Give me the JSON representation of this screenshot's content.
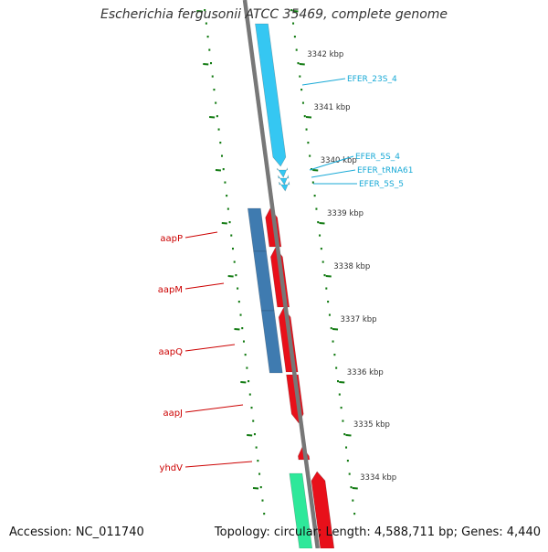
{
  "map": {
    "title": "Escherichia fergusonii ATCC 35469, complete genome",
    "accession": "Accession: NC_011740",
    "topology": "Topology: circular; Length: 4,588,711 bp; Genes: 4,440"
  },
  "colors": {
    "forward_cds": "#e8101a",
    "reverse_cds": "#3f7bb0",
    "rrna": "#35c7f2",
    "green_gene": "#2ee89a",
    "backbone": "#777777",
    "ticks": "#117a11",
    "gene_label": "#cc0000",
    "rna_label": "#18a9d6",
    "kbp_label": "#333333"
  },
  "kbp_ticks": [
    "3342 kbp",
    "3341 kbp",
    "3340 kbp",
    "3339 kbp",
    "3338 kbp",
    "3337 kbp",
    "3336 kbp",
    "3335 kbp",
    "3334 kbp"
  ],
  "gene_labels": [
    "aapP",
    "aapM",
    "aapQ",
    "aapJ",
    "yhdV"
  ],
  "rna_labels": [
    "EFER_23S_4",
    "EFER_5S_4",
    "EFER_tRNA61",
    "EFER_5S_5"
  ]
}
